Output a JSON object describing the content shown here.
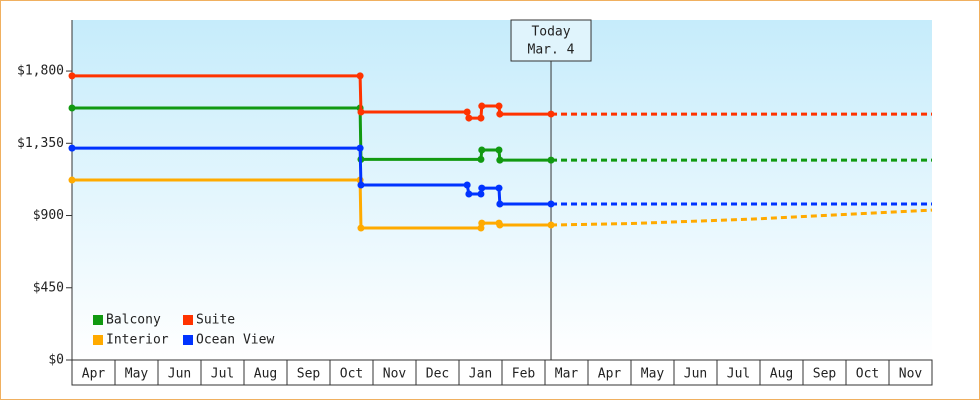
{
  "chart_data": {
    "type": "line",
    "categories": [
      "Apr",
      "May",
      "Jun",
      "Jul",
      "Aug",
      "Sep",
      "Oct",
      "Nov",
      "Dec",
      "Jan",
      "Feb",
      "Mar",
      "Apr",
      "May",
      "Jun",
      "Jul",
      "Aug",
      "Sep",
      "Oct",
      "Nov"
    ],
    "xlim": [
      0,
      20
    ],
    "ylim": [
      0,
      2118
    ],
    "yticks": [
      {
        "value": 0,
        "label": "$0"
      },
      {
        "value": 450,
        "label": "$450"
      },
      {
        "value": 900,
        "label": "$900"
      },
      {
        "value": 1350,
        "label": "$1,350"
      },
      {
        "value": 1800,
        "label": "$1,800"
      }
    ],
    "legend": "bottom-left",
    "annotation": {
      "x": 11.14,
      "lines": [
        "Today",
        "Mar. 4"
      ]
    },
    "series": [
      {
        "name": "Balcony",
        "color": "#119911",
        "x": [
          0,
          6.7,
          6.72,
          9.51,
          9.53,
          9.93,
          9.95,
          11.14
        ],
        "values": [
          1570,
          1570,
          1250,
          1250,
          1308,
          1308,
          1245,
          1245
        ],
        "forecast": {
          "x": [
            11.14,
            20
          ],
          "values": [
            1245,
            1245
          ]
        }
      },
      {
        "name": "Suite",
        "color": "#ff3300",
        "x": [
          0,
          6.7,
          6.72,
          9.19,
          9.23,
          9.51,
          9.53,
          9.93,
          9.95,
          11.14
        ],
        "values": [
          1770,
          1770,
          1545,
          1545,
          1507,
          1507,
          1582,
          1582,
          1532,
          1532
        ],
        "forecast": {
          "x": [
            11.14,
            20
          ],
          "values": [
            1532,
            1532
          ]
        }
      },
      {
        "name": "Interior",
        "color": "#ffaa00",
        "x": [
          0,
          6.7,
          6.72,
          9.51,
          9.53,
          9.93,
          9.95,
          11.14
        ],
        "values": [
          1121,
          1121,
          822,
          822,
          853,
          853,
          841,
          841
        ],
        "forecast": {
          "x": [
            11.14,
            13,
            16,
            20
          ],
          "values": [
            841,
            850,
            880,
            934
          ]
        }
      },
      {
        "name": "Ocean View",
        "color": "#0033ff",
        "x": [
          0,
          6.7,
          6.72,
          9.19,
          9.23,
          9.51,
          9.53,
          9.93,
          9.95,
          11.14
        ],
        "values": [
          1320,
          1320,
          1090,
          1090,
          1034,
          1034,
          1071,
          1071,
          972,
          972
        ],
        "forecast": {
          "x": [
            11.14,
            20
          ],
          "values": [
            972,
            972
          ]
        }
      }
    ]
  }
}
